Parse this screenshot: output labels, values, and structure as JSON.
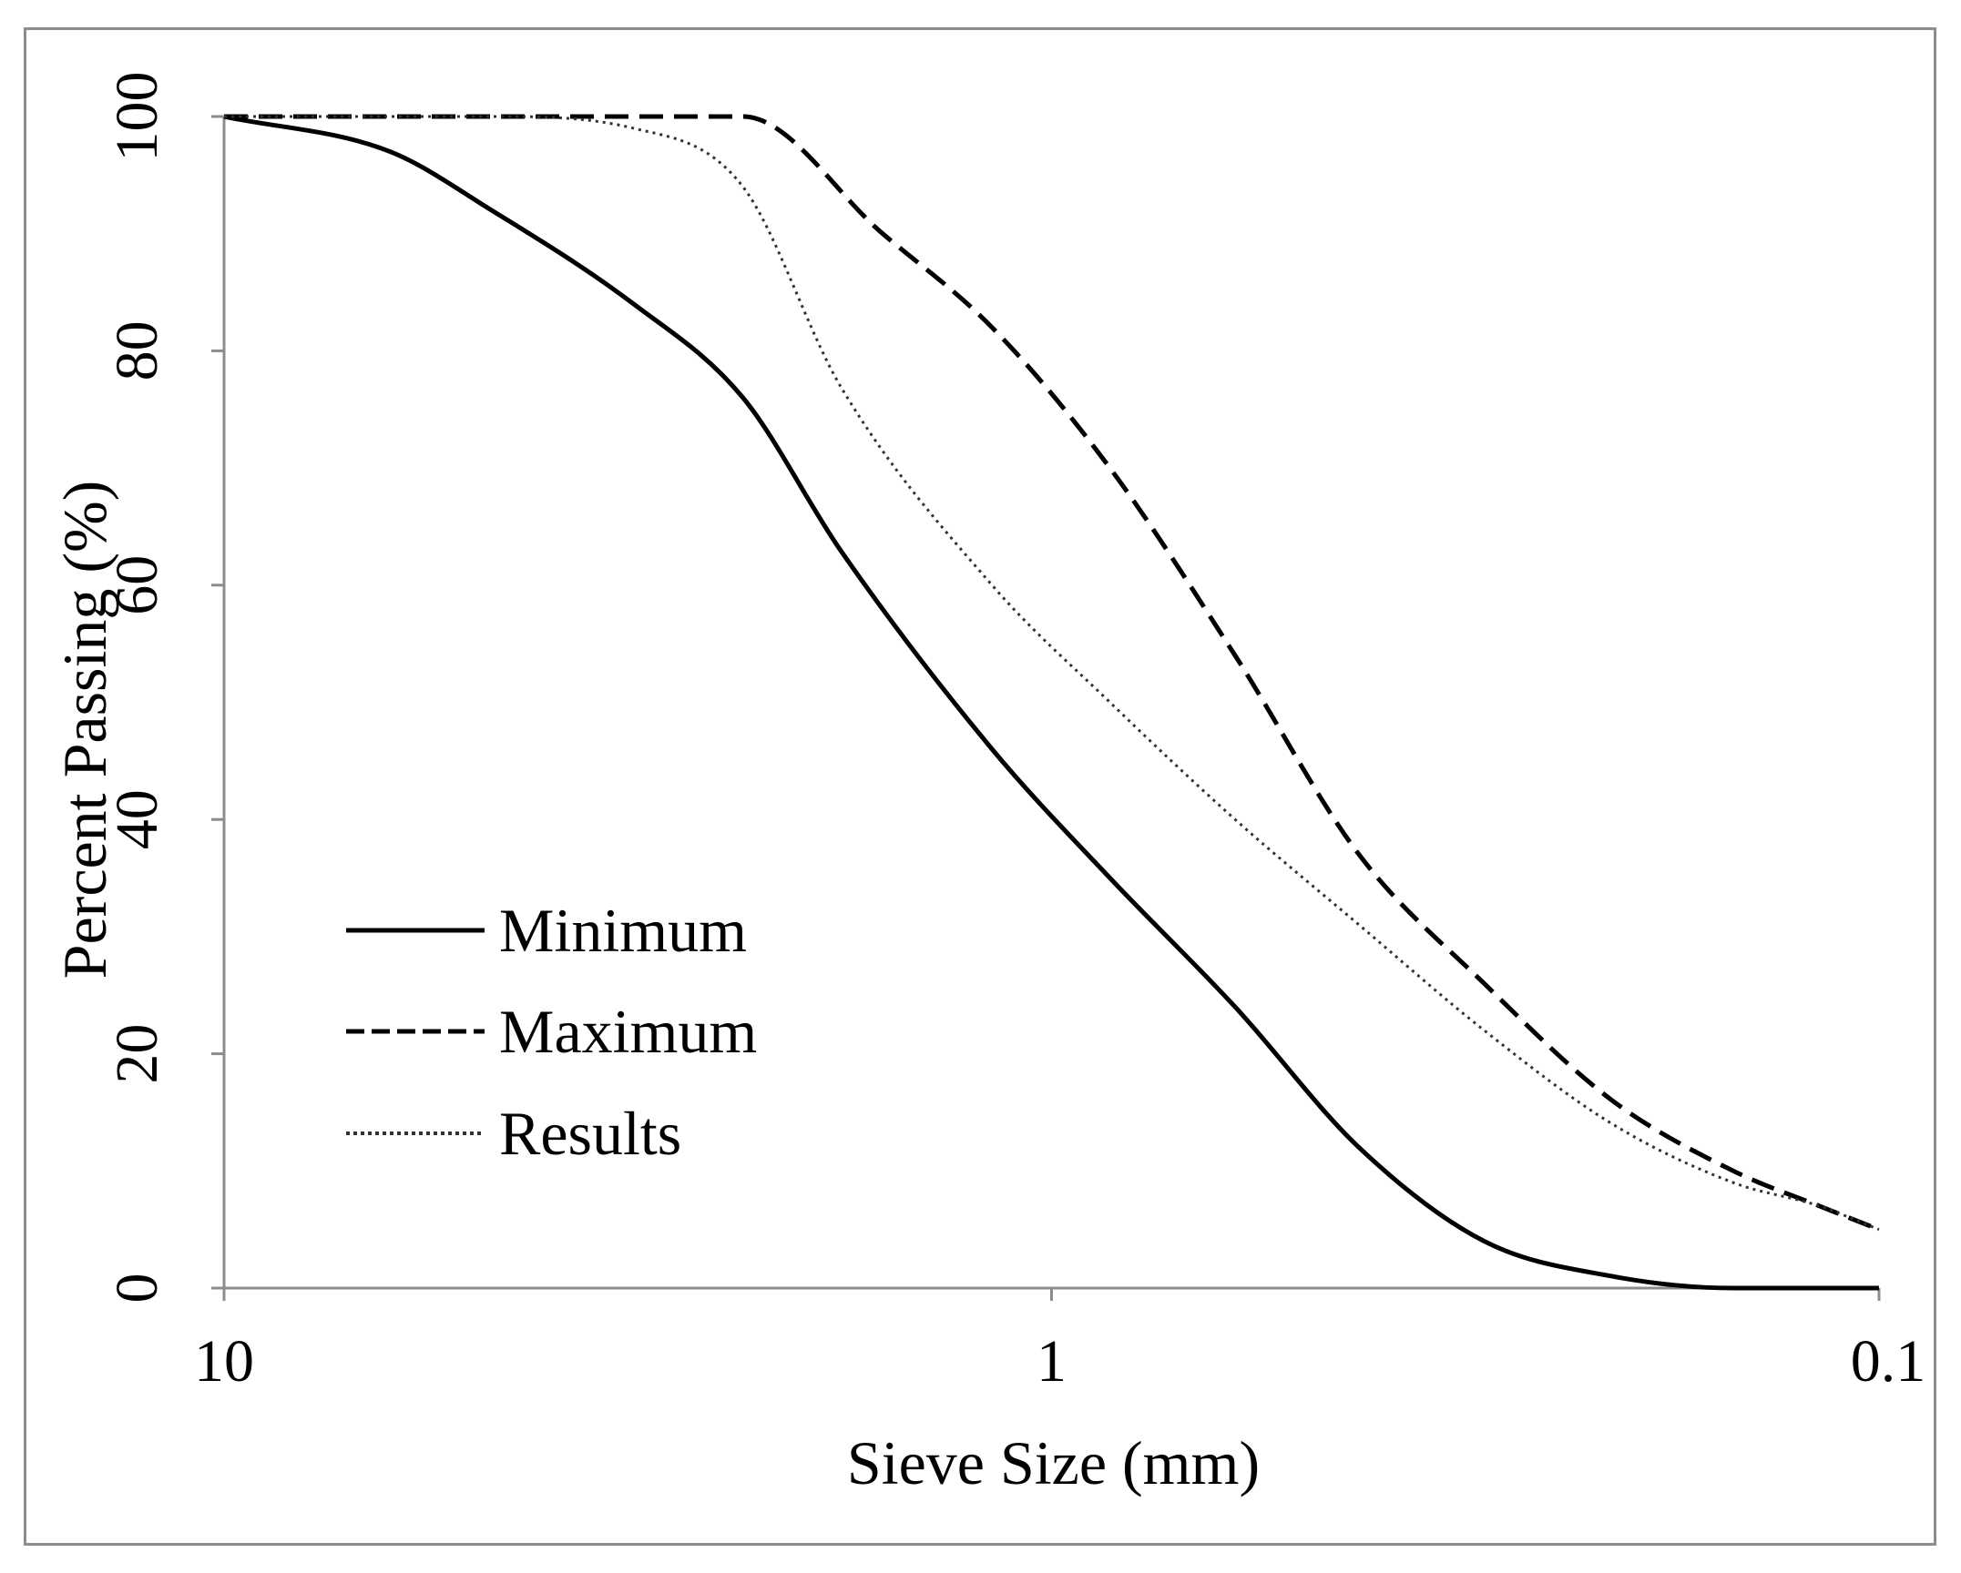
{
  "chart_data": {
    "type": "line",
    "title": "",
    "xlabel": "Sieve Size (mm)",
    "ylabel": "Percent Passing (%)",
    "xscale": "log",
    "xlim": [
      10,
      0.1
    ],
    "ylim": [
      0,
      100
    ],
    "xticks": [
      {
        "value": 10,
        "label": "10"
      },
      {
        "value": 1,
        "label": "1"
      },
      {
        "value": 0.1,
        "label": "0.1"
      }
    ],
    "yticks": [
      {
        "value": 0,
        "label": "0"
      },
      {
        "value": 20,
        "label": "20"
      },
      {
        "value": 40,
        "label": "40"
      },
      {
        "value": 60,
        "label": "60"
      },
      {
        "value": 80,
        "label": "80"
      },
      {
        "value": 100,
        "label": "100"
      }
    ],
    "grid": false,
    "legend_position": "lower-left",
    "series": [
      {
        "name": "Minimum",
        "style": "solid",
        "x": [
          10,
          6.3,
          4.75,
          3.2,
          2.36,
          1.8,
          1.18,
          0.85,
          0.6,
          0.425,
          0.3,
          0.21,
          0.15,
          0.118,
          0.1
        ],
        "y": [
          100,
          97,
          92,
          84,
          76,
          63,
          46,
          35,
          24,
          12,
          4,
          1,
          0,
          0,
          0
        ]
      },
      {
        "name": "Maximum",
        "style": "dashed",
        "x": [
          10,
          4.75,
          2.36,
          1.6,
          1.18,
          0.85,
          0.6,
          0.425,
          0.3,
          0.21,
          0.15,
          0.118,
          0.1
        ],
        "y": [
          100,
          100,
          100,
          90,
          82,
          70,
          54,
          37,
          26,
          16,
          10,
          7,
          5
        ]
      },
      {
        "name": "Results",
        "style": "dotted",
        "x": [
          10,
          4.75,
          3.2,
          2.36,
          1.8,
          1.18,
          0.85,
          0.6,
          0.425,
          0.3,
          0.21,
          0.15,
          0.118,
          0.1
        ],
        "y": [
          100,
          100,
          99,
          94,
          77,
          60,
          50,
          40,
          31,
          22,
          14,
          9,
          7,
          5
        ]
      }
    ]
  }
}
